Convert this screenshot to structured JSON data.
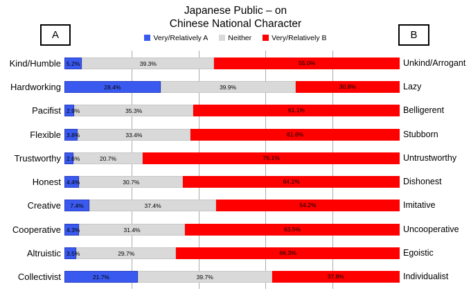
{
  "title": {
    "line1": "Japanese Public – on",
    "line2": "Chinese National Character"
  },
  "side_labels": {
    "left": "A",
    "right": "B"
  },
  "colors": {
    "series_a": "#3a5aef",
    "series_a_border": "#2a3ec0",
    "neither": "#d9d9d9",
    "series_b": "#fe0000",
    "gridline": "#ababab"
  },
  "legend": [
    {
      "label": "Very/Relatively A",
      "color": "#3a5aef"
    },
    {
      "label": "Neither",
      "color": "#d9d9d9"
    },
    {
      "label": "Very/Relatively B",
      "color": "#fe0000"
    }
  ],
  "chart_data": {
    "type": "bar",
    "subtype": "100-percent-stacked-horizontal",
    "title": "Japanese Public – on Chinese National Character",
    "xlim": [
      0,
      100
    ],
    "gridlines_percent": [
      20,
      40,
      60,
      80
    ],
    "legend_position": "top",
    "value_label_format": "0.0%",
    "categories_left": [
      "Kind/Humble",
      "Hardworking",
      "Pacifist",
      "Flexible",
      "Trustworthy",
      "Honest",
      "Creative",
      "Cooperative",
      "Altruistic",
      "Collectivist"
    ],
    "categories_right": [
      "Unkind/Arrogant",
      "Lazy",
      "Belligerent",
      "Stubborn",
      "Untrustworthy",
      "Dishonest",
      "Imitative",
      "Uncooperative",
      "Egoistic",
      "Individualist"
    ],
    "series": [
      {
        "name": "Very/Relatively A",
        "key": "a",
        "values": [
          5.2,
          28.4,
          2.9,
          3.8,
          2.6,
          4.4,
          7.4,
          4.3,
          3.5,
          21.7
        ]
      },
      {
        "name": "Neither",
        "key": "n",
        "values": [
          39.3,
          39.9,
          35.3,
          33.4,
          20.7,
          30.7,
          37.4,
          31.4,
          29.7,
          39.7
        ]
      },
      {
        "name": "Very/Relatively B",
        "key": "b",
        "values": [
          55.0,
          30.8,
          61.1,
          61.6,
          76.1,
          64.1,
          54.2,
          63.5,
          66.3,
          37.8
        ]
      }
    ]
  }
}
